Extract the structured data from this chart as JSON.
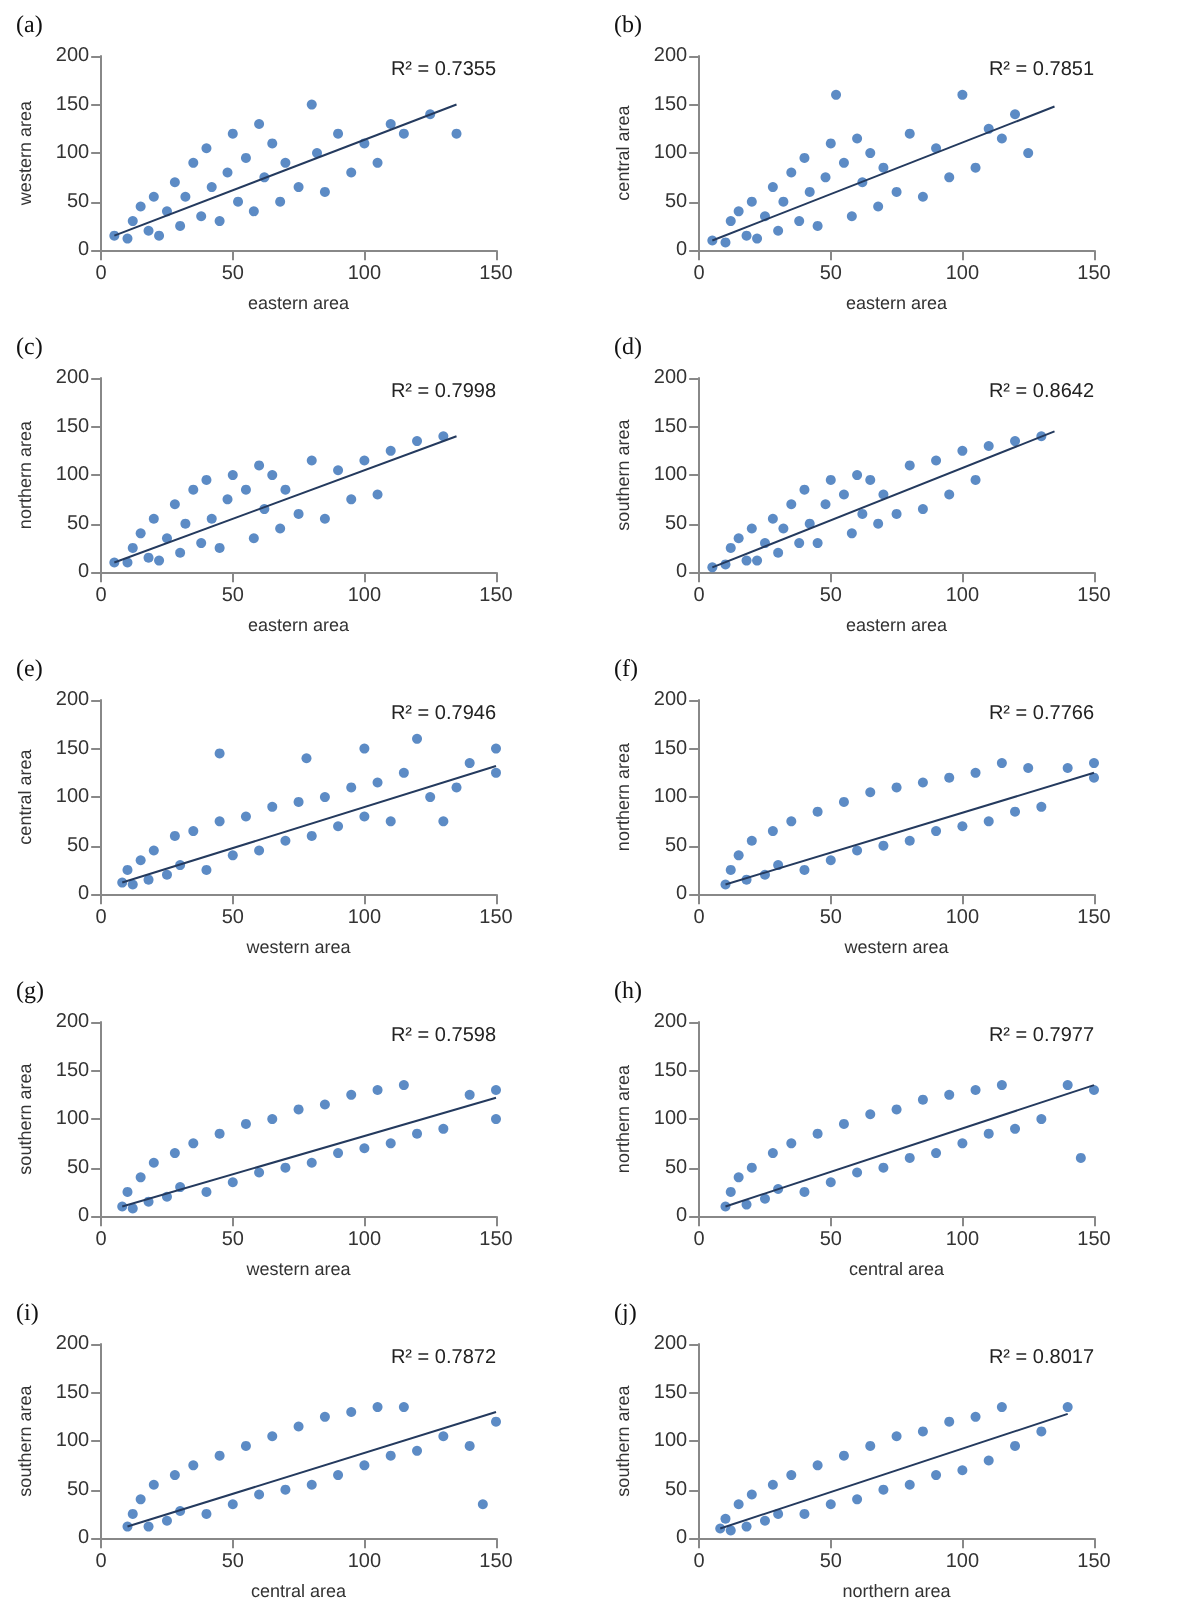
{
  "chart_data": [
    {
      "type": "scatter",
      "title": "(a)",
      "xlabel": "eastern area",
      "ylabel": "western area",
      "annotations": [
        "R² = 0.7355"
      ],
      "xlim": [
        0,
        150
      ],
      "xticks": [
        0,
        50,
        100,
        150
      ],
      "ylim": [
        0,
        200
      ],
      "yticks": [
        0,
        50,
        100,
        150,
        200
      ],
      "marker": "circle",
      "series": [
        {
          "color": "#4a7ebf",
          "x": [
            5,
            10,
            12,
            15,
            18,
            20,
            22,
            25,
            28,
            30,
            32,
            35,
            38,
            40,
            42,
            45,
            48,
            50,
            52,
            55,
            58,
            60,
            62,
            65,
            68,
            70,
            75,
            80,
            82,
            85,
            90,
            95,
            100,
            105,
            110,
            115,
            125,
            135
          ],
          "values": [
            15,
            12,
            30,
            45,
            20,
            55,
            15,
            40,
            70,
            25,
            55,
            90,
            35,
            105,
            65,
            30,
            80,
            120,
            50,
            95,
            40,
            130,
            75,
            110,
            50,
            90,
            65,
            150,
            100,
            60,
            120,
            80,
            110,
            90,
            130,
            120,
            140,
            120
          ]
        },
        {
          "type": "line",
          "marker": "none",
          "color": "#243a5e",
          "x": [
            5,
            135
          ],
          "values": [
            15,
            150
          ]
        }
      ]
    },
    {
      "type": "scatter",
      "title": "(b)",
      "xlabel": "eastern area",
      "ylabel": "central area",
      "annotations": [
        "R² = 0.7851"
      ],
      "xlim": [
        0,
        150
      ],
      "xticks": [
        0,
        50,
        100,
        150
      ],
      "ylim": [
        0,
        200
      ],
      "yticks": [
        0,
        50,
        100,
        150,
        200
      ],
      "marker": "circle",
      "series": [
        {
          "color": "#4a7ebf",
          "x": [
            5,
            10,
            12,
            15,
            18,
            20,
            22,
            25,
            28,
            30,
            32,
            35,
            38,
            40,
            42,
            45,
            48,
            50,
            52,
            55,
            58,
            60,
            62,
            65,
            68,
            70,
            75,
            80,
            85,
            90,
            95,
            100,
            105,
            110,
            115,
            120,
            125
          ],
          "values": [
            10,
            8,
            30,
            40,
            15,
            50,
            12,
            35,
            65,
            20,
            50,
            80,
            30,
            95,
            60,
            25,
            75,
            110,
            160,
            90,
            35,
            115,
            70,
            100,
            45,
            85,
            60,
            120,
            55,
            105,
            75,
            160,
            85,
            125,
            115,
            140,
            100
          ]
        },
        {
          "type": "line",
          "marker": "none",
          "color": "#243a5e",
          "x": [
            5,
            135
          ],
          "values": [
            10,
            148
          ]
        }
      ]
    },
    {
      "type": "scatter",
      "title": "(c)",
      "xlabel": "eastern area",
      "ylabel": "northern area",
      "annotations": [
        "R² = 0.7998"
      ],
      "xlim": [
        0,
        150
      ],
      "xticks": [
        0,
        50,
        100,
        150
      ],
      "ylim": [
        0,
        200
      ],
      "yticks": [
        0,
        50,
        100,
        150,
        200
      ],
      "marker": "circle",
      "series": [
        {
          "color": "#4a7ebf",
          "x": [
            5,
            10,
            12,
            15,
            18,
            20,
            22,
            25,
            28,
            30,
            32,
            35,
            38,
            40,
            42,
            45,
            48,
            50,
            55,
            58,
            60,
            62,
            65,
            68,
            70,
            75,
            80,
            85,
            90,
            95,
            100,
            105,
            110,
            120,
            130
          ],
          "values": [
            10,
            10,
            25,
            40,
            15,
            55,
            12,
            35,
            70,
            20,
            50,
            85,
            30,
            95,
            55,
            25,
            75,
            100,
            85,
            35,
            110,
            65,
            100,
            45,
            85,
            60,
            115,
            55,
            105,
            75,
            115,
            80,
            125,
            135,
            140
          ]
        },
        {
          "type": "line",
          "marker": "none",
          "color": "#243a5e",
          "x": [
            5,
            135
          ],
          "values": [
            10,
            140
          ]
        }
      ]
    },
    {
      "type": "scatter",
      "title": "(d)",
      "xlabel": "eastern area",
      "ylabel": "southern area",
      "annotations": [
        "R² = 0.8642"
      ],
      "xlim": [
        0,
        150
      ],
      "xticks": [
        0,
        50,
        100,
        150
      ],
      "ylim": [
        0,
        200
      ],
      "yticks": [
        0,
        50,
        100,
        150,
        200
      ],
      "marker": "circle",
      "series": [
        {
          "color": "#4a7ebf",
          "x": [
            5,
            10,
            12,
            15,
            18,
            20,
            22,
            25,
            28,
            30,
            32,
            35,
            38,
            40,
            42,
            45,
            48,
            50,
            55,
            58,
            60,
            62,
            65,
            68,
            70,
            75,
            80,
            85,
            90,
            95,
            100,
            105,
            110,
            120,
            130
          ],
          "values": [
            5,
            8,
            25,
            35,
            12,
            45,
            12,
            30,
            55,
            20,
            45,
            70,
            30,
            85,
            50,
            30,
            70,
            95,
            80,
            40,
            100,
            60,
            95,
            50,
            80,
            60,
            110,
            65,
            115,
            80,
            125,
            95,
            130,
            135,
            140
          ]
        },
        {
          "type": "line",
          "marker": "none",
          "color": "#243a5e",
          "x": [
            5,
            135
          ],
          "values": [
            5,
            145
          ]
        }
      ]
    },
    {
      "type": "scatter",
      "title": "(e)",
      "xlabel": "western area",
      "ylabel": "central area",
      "annotations": [
        "R² = 0.7946"
      ],
      "xlim": [
        0,
        150
      ],
      "xticks": [
        0,
        50,
        100,
        150
      ],
      "ylim": [
        0,
        200
      ],
      "yticks": [
        0,
        50,
        100,
        150,
        200
      ],
      "marker": "circle",
      "series": [
        {
          "color": "#4a7ebf",
          "x": [
            8,
            10,
            12,
            15,
            18,
            20,
            25,
            28,
            30,
            35,
            40,
            45,
            45,
            50,
            55,
            60,
            65,
            70,
            75,
            78,
            80,
            85,
            90,
            95,
            100,
            100,
            105,
            110,
            115,
            120,
            125,
            130,
            135,
            140,
            150,
            150
          ],
          "values": [
            12,
            25,
            10,
            35,
            15,
            45,
            20,
            60,
            30,
            65,
            25,
            75,
            145,
            40,
            80,
            45,
            90,
            55,
            95,
            140,
            60,
            100,
            70,
            110,
            80,
            150,
            115,
            75,
            125,
            160,
            100,
            75,
            110,
            135,
            150,
            125
          ]
        },
        {
          "type": "line",
          "marker": "none",
          "color": "#243a5e",
          "x": [
            8,
            150
          ],
          "values": [
            12,
            132
          ]
        }
      ]
    },
    {
      "type": "scatter",
      "title": "(f)",
      "xlabel": "western area",
      "ylabel": "northern area",
      "annotations": [
        "R² = 0.7766"
      ],
      "xlim": [
        0,
        150
      ],
      "xticks": [
        0,
        50,
        100,
        150
      ],
      "ylim": [
        0,
        200
      ],
      "yticks": [
        0,
        50,
        100,
        150,
        200
      ],
      "marker": "circle",
      "series": [
        {
          "color": "#4a7ebf",
          "x": [
            10,
            12,
            15,
            18,
            20,
            25,
            28,
            30,
            35,
            40,
            45,
            50,
            55,
            60,
            65,
            70,
            75,
            80,
            85,
            90,
            95,
            100,
            105,
            110,
            115,
            120,
            125,
            130,
            140,
            150,
            150
          ],
          "values": [
            10,
            25,
            40,
            15,
            55,
            20,
            65,
            30,
            75,
            25,
            85,
            35,
            95,
            45,
            105,
            50,
            110,
            55,
            115,
            65,
            120,
            70,
            125,
            75,
            135,
            85,
            130,
            90,
            130,
            120,
            135
          ]
        },
        {
          "type": "line",
          "marker": "none",
          "color": "#243a5e",
          "x": [
            10,
            150
          ],
          "values": [
            10,
            125
          ]
        }
      ]
    },
    {
      "type": "scatter",
      "title": "(g)",
      "xlabel": "western area",
      "ylabel": "southern area",
      "annotations": [
        "R² = 0.7598"
      ],
      "xlim": [
        0,
        150
      ],
      "xticks": [
        0,
        50,
        100,
        150
      ],
      "ylim": [
        0,
        200
      ],
      "yticks": [
        0,
        50,
        100,
        150,
        200
      ],
      "marker": "circle",
      "series": [
        {
          "color": "#4a7ebf",
          "x": [
            8,
            10,
            12,
            15,
            18,
            20,
            25,
            28,
            30,
            35,
            40,
            45,
            50,
            55,
            60,
            65,
            70,
            75,
            80,
            85,
            90,
            95,
            100,
            105,
            110,
            115,
            120,
            130,
            140,
            150,
            150
          ],
          "values": [
            10,
            25,
            8,
            40,
            15,
            55,
            20,
            65,
            30,
            75,
            25,
            85,
            35,
            95,
            45,
            100,
            50,
            110,
            55,
            115,
            65,
            125,
            70,
            130,
            75,
            135,
            85,
            90,
            125,
            100,
            130
          ]
        },
        {
          "type": "line",
          "marker": "none",
          "color": "#243a5e",
          "x": [
            8,
            150
          ],
          "values": [
            10,
            122
          ]
        }
      ]
    },
    {
      "type": "scatter",
      "title": "(h)",
      "xlabel": "central area",
      "ylabel": "northern area",
      "annotations": [
        "R² = 0.7977"
      ],
      "xlim": [
        0,
        150
      ],
      "xticks": [
        0,
        50,
        100,
        150
      ],
      "ylim": [
        0,
        200
      ],
      "yticks": [
        0,
        50,
        100,
        150,
        200
      ],
      "marker": "circle",
      "series": [
        {
          "color": "#4a7ebf",
          "x": [
            10,
            12,
            15,
            18,
            20,
            25,
            28,
            30,
            35,
            40,
            45,
            50,
            55,
            60,
            65,
            70,
            75,
            80,
            85,
            90,
            95,
            100,
            105,
            110,
            115,
            120,
            130,
            140,
            145,
            150
          ],
          "values": [
            10,
            25,
            40,
            12,
            50,
            18,
            65,
            28,
            75,
            25,
            85,
            35,
            95,
            45,
            105,
            50,
            110,
            60,
            120,
            65,
            125,
            75,
            130,
            85,
            135,
            90,
            100,
            135,
            60,
            130
          ]
        },
        {
          "type": "line",
          "marker": "none",
          "color": "#243a5e",
          "x": [
            10,
            150
          ],
          "values": [
            10,
            135
          ]
        }
      ]
    },
    {
      "type": "scatter",
      "title": "(i)",
      "xlabel": "central area",
      "ylabel": "southern area",
      "annotations": [
        "R² = 0.7872"
      ],
      "xlim": [
        0,
        150
      ],
      "xticks": [
        0,
        50,
        100,
        150
      ],
      "ylim": [
        0,
        200
      ],
      "yticks": [
        0,
        50,
        100,
        150,
        200
      ],
      "marker": "circle",
      "series": [
        {
          "color": "#4a7ebf",
          "x": [
            10,
            12,
            15,
            18,
            20,
            25,
            28,
            30,
            35,
            40,
            45,
            50,
            55,
            60,
            65,
            70,
            75,
            80,
            85,
            90,
            95,
            100,
            105,
            110,
            115,
            120,
            130,
            140,
            145,
            150
          ],
          "values": [
            12,
            25,
            40,
            12,
            55,
            18,
            65,
            28,
            75,
            25,
            85,
            35,
            95,
            45,
            105,
            50,
            115,
            55,
            125,
            65,
            130,
            75,
            135,
            85,
            135,
            90,
            105,
            95,
            35,
            120
          ]
        },
        {
          "type": "line",
          "marker": "none",
          "color": "#243a5e",
          "x": [
            10,
            150
          ],
          "values": [
            12,
            130
          ]
        }
      ]
    },
    {
      "type": "scatter",
      "title": "(j)",
      "xlabel": "northern area",
      "ylabel": "southern area",
      "annotations": [
        "R² = 0.8017"
      ],
      "xlim": [
        0,
        150
      ],
      "xticks": [
        0,
        50,
        100,
        150
      ],
      "ylim": [
        0,
        200
      ],
      "yticks": [
        0,
        50,
        100,
        150,
        200
      ],
      "marker": "circle",
      "series": [
        {
          "color": "#4a7ebf",
          "x": [
            8,
            10,
            12,
            15,
            18,
            20,
            25,
            28,
            30,
            35,
            40,
            45,
            50,
            55,
            60,
            65,
            70,
            75,
            80,
            85,
            90,
            95,
            100,
            105,
            110,
            115,
            120,
            130,
            140
          ],
          "values": [
            10,
            20,
            8,
            35,
            12,
            45,
            18,
            55,
            25,
            65,
            25,
            75,
            35,
            85,
            40,
            95,
            50,
            105,
            55,
            110,
            65,
            120,
            70,
            125,
            80,
            135,
            95,
            110,
            135
          ]
        },
        {
          "type": "line",
          "marker": "none",
          "color": "#243a5e",
          "x": [
            8,
            140
          ],
          "values": [
            10,
            128
          ]
        }
      ]
    }
  ]
}
